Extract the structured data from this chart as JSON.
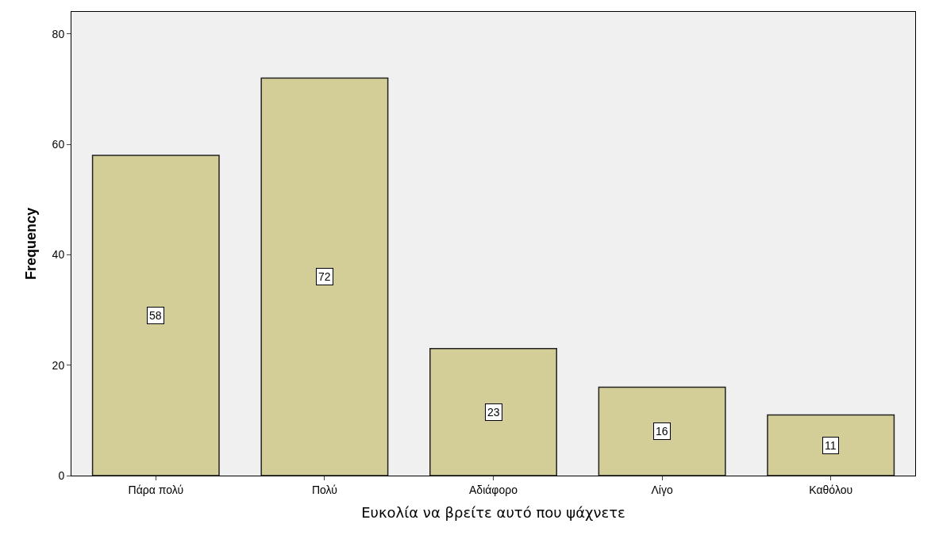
{
  "chart_data": {
    "type": "bar",
    "xlabel": "Ευκολία να βρείτε αυτό που ψάχνετε",
    "ylabel": "Frequency",
    "categories": [
      "Πάρα πολύ",
      "Πολύ",
      "Αδιάφορο",
      "Λίγο",
      "Καθόλου"
    ],
    "values": [
      58,
      72,
      23,
      16,
      11
    ],
    "color": "#d3ce97",
    "ylim": [
      0,
      84
    ],
    "yticks": [
      0,
      20,
      40,
      60,
      80
    ],
    "grid": false,
    "data_labels": true
  }
}
